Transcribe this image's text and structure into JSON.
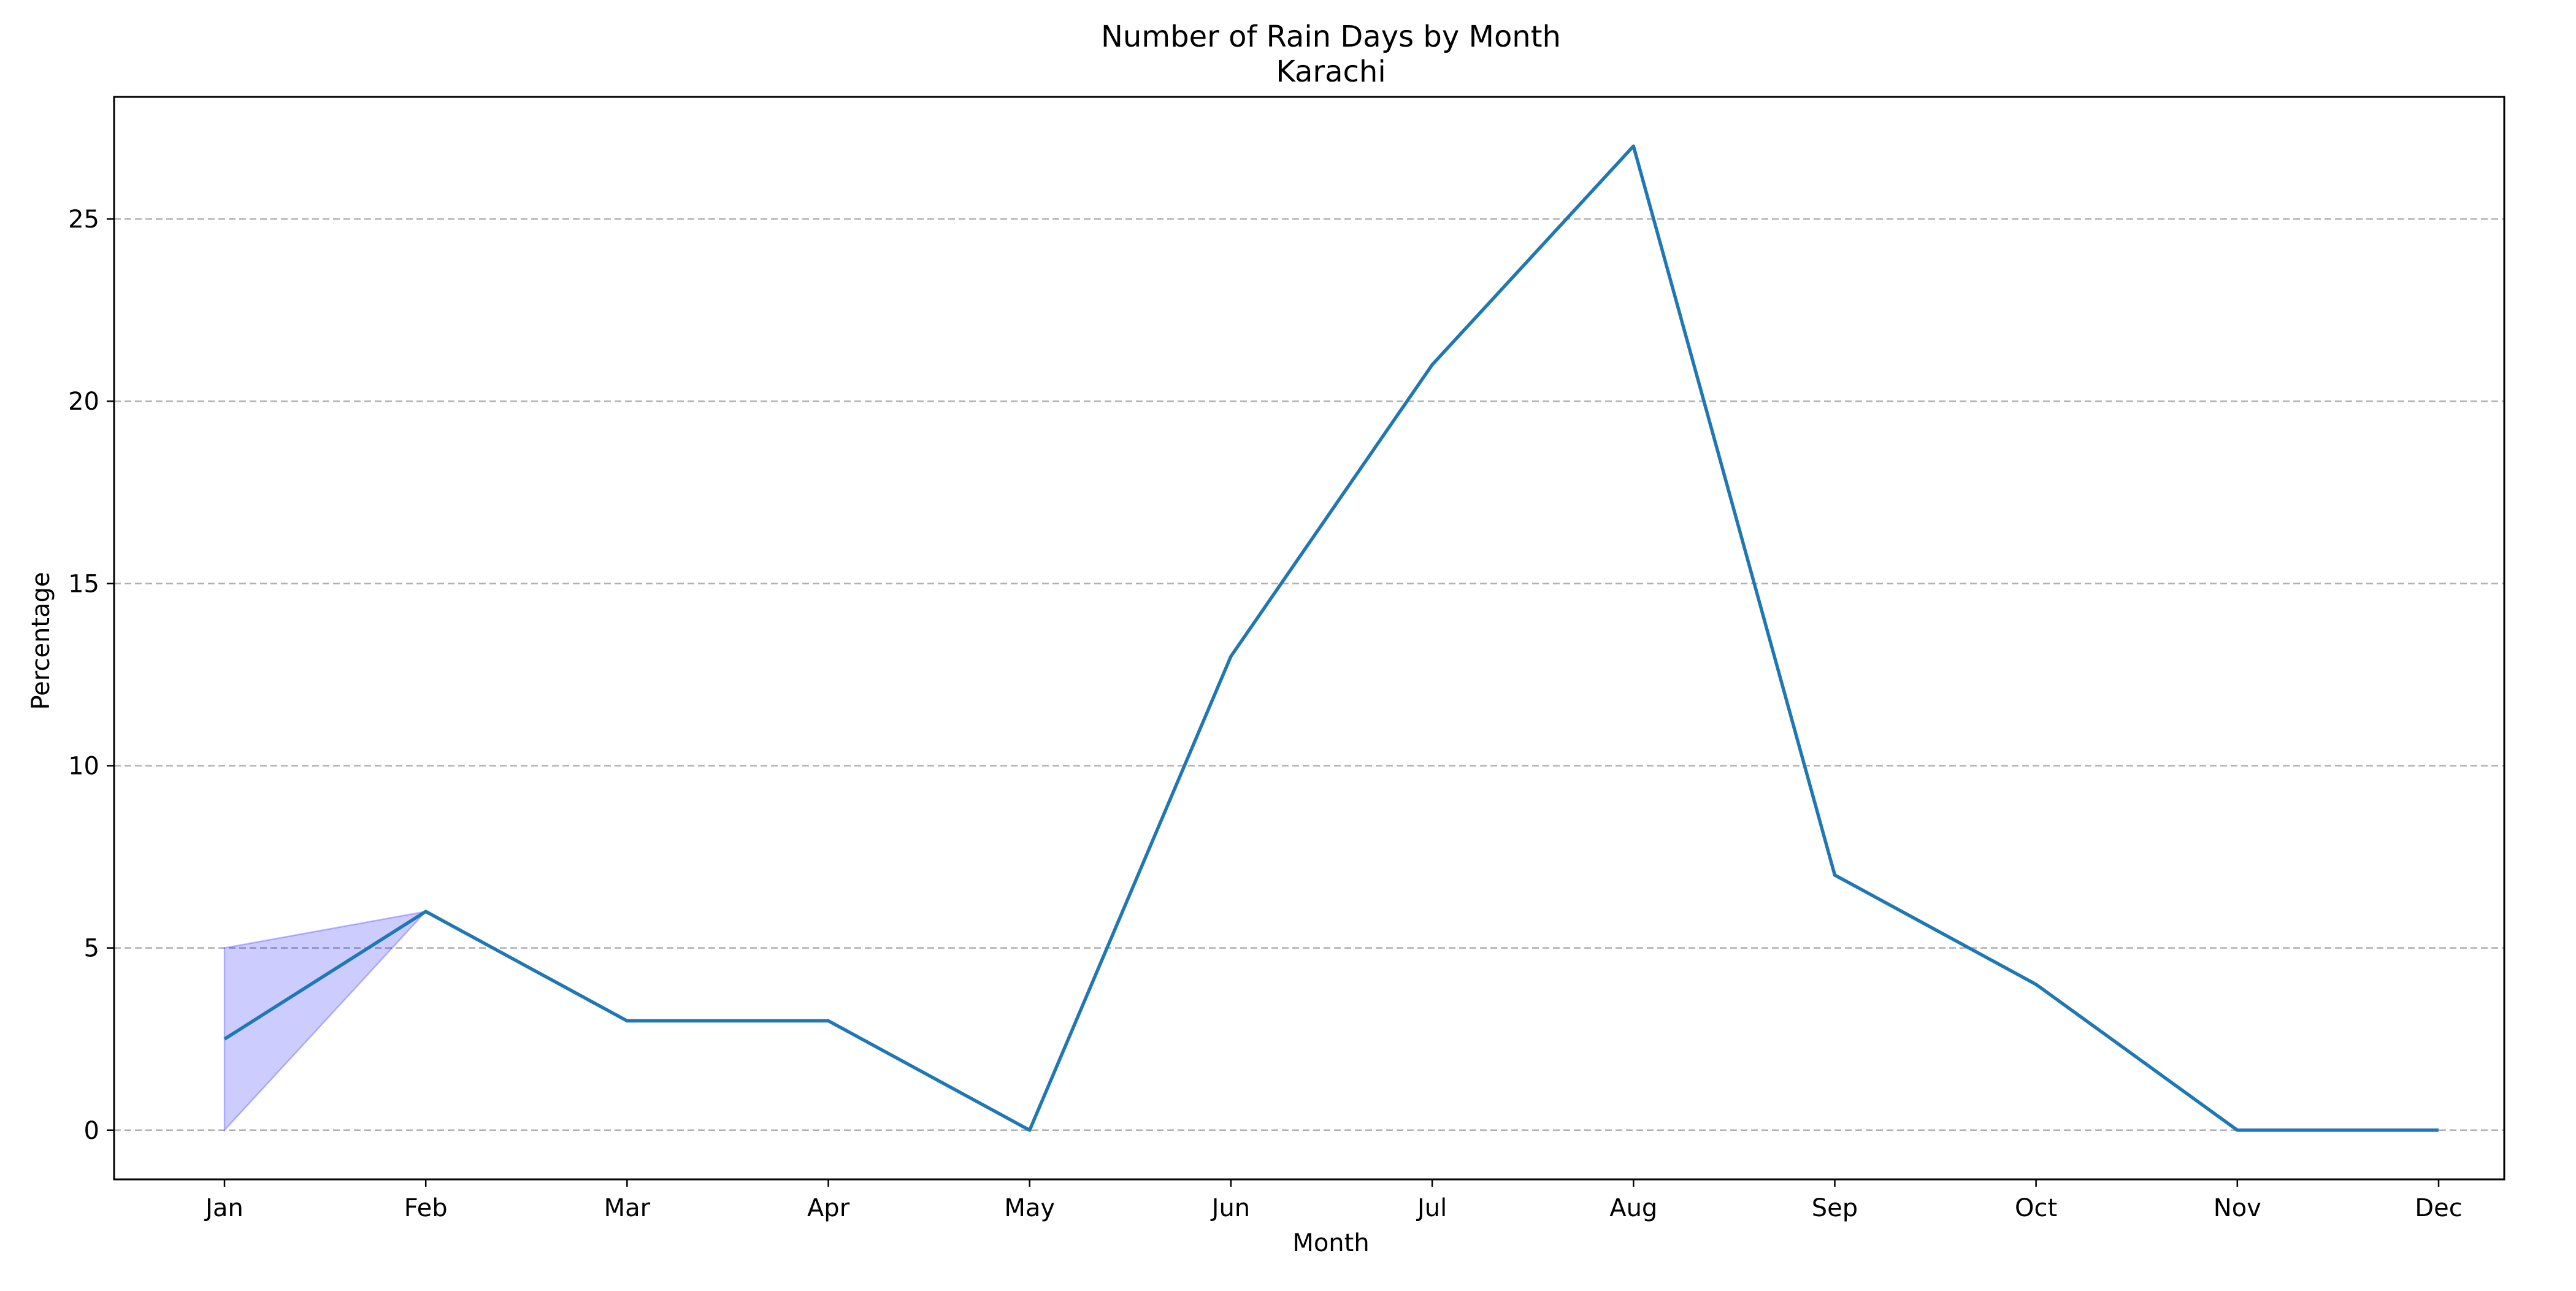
{
  "chart_data": {
    "type": "line",
    "title": "Number of Rain Days by Month",
    "subtitle": "Karachi",
    "xlabel": "Month",
    "ylabel": "Percentage",
    "categories": [
      "Jan",
      "Feb",
      "Mar",
      "Apr",
      "May",
      "Jun",
      "Jul",
      "Aug",
      "Sep",
      "Oct",
      "Nov",
      "Dec"
    ],
    "series": [
      {
        "values": [
          2.5,
          6,
          3,
          3,
          0,
          13,
          21,
          27,
          7,
          4,
          0,
          0
        ],
        "color": "#1f77b4"
      }
    ],
    "band": {
      "categories": [
        "Jan",
        "Feb"
      ],
      "lower": [
        0,
        6
      ],
      "upper": [
        5,
        6
      ],
      "color": "#0000ff",
      "opacity": 0.2
    },
    "ylim": [
      -1.35,
      28.35
    ],
    "yticks": [
      0,
      5,
      10,
      15,
      20,
      25
    ],
    "grid": "y-dashed",
    "legend": "none"
  }
}
